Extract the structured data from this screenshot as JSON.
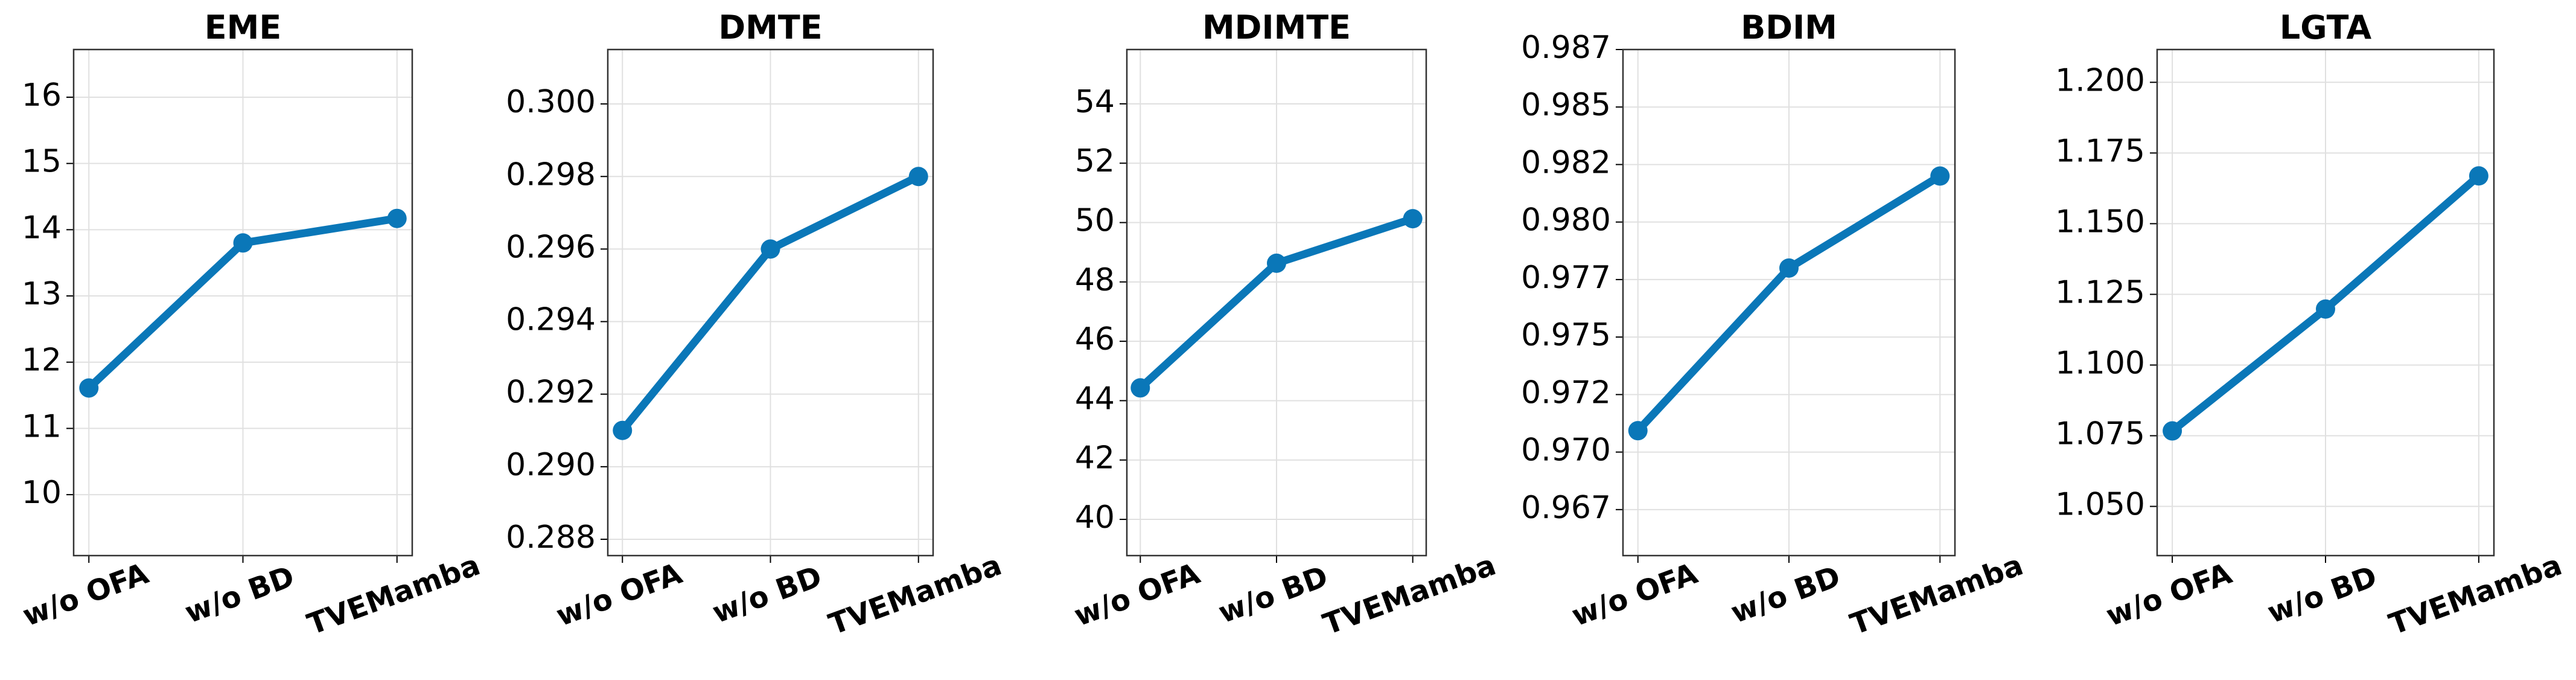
{
  "chart_data": [
    {
      "type": "line",
      "title": "EME",
      "categories": [
        "w/o OFA",
        "w/o BD",
        "TVEMamba"
      ],
      "values": [
        11.61,
        13.8,
        14.17
      ],
      "color": "#0a77b8",
      "ylim": [
        9.08,
        16.72
      ],
      "yticks": [
        10,
        11,
        12,
        13,
        14,
        15,
        16
      ],
      "grid": true
    },
    {
      "type": "line",
      "title": "DMTE",
      "categories": [
        "w/o OFA",
        "w/o BD",
        "TVEMamba"
      ],
      "values": [
        0.291,
        0.296,
        0.298
      ],
      "color": "#0a77b8",
      "ylim": [
        0.28755,
        0.3015
      ],
      "yticks": [
        0.288,
        {
          "value": 0.29,
          "label": "0.290"
        },
        0.292,
        0.294,
        0.296,
        0.298,
        {
          "value": 0.3,
          "label": "0.300"
        }
      ],
      "grid": true
    },
    {
      "type": "line",
      "title": "MDIMTE",
      "categories": [
        "w/o OFA",
        "w/o BD",
        "TVEMamba"
      ],
      "values": [
        44.43,
        48.63,
        50.13
      ],
      "color": "#0a77b8",
      "ylim": [
        38.78,
        55.83
      ],
      "yticks": [
        40,
        42,
        44,
        46,
        48,
        50,
        52,
        54
      ],
      "grid": true
    },
    {
      "type": "line",
      "title": "BDIM",
      "categories": [
        "w/o OFA",
        "w/o BD",
        "TVEMamba"
      ],
      "values": [
        0.97093,
        0.978,
        0.982
      ],
      "color": "#0a77b8",
      "ylim": [
        0.9655,
        0.9875
      ],
      "yticks": [
        {
          "value": 0.9675,
          "label": "0.967"
        },
        {
          "value": 0.97,
          "label": "0.970"
        },
        {
          "value": 0.9725,
          "label": "0.972"
        },
        0.975,
        {
          "value": 0.9775,
          "label": "0.977"
        },
        {
          "value": 0.98,
          "label": "0.980"
        },
        {
          "value": 0.9825,
          "label": "0.982"
        },
        0.985,
        {
          "value": 0.9875,
          "label": "0.987"
        }
      ],
      "grid": true
    },
    {
      "type": "line",
      "title": "LGTA",
      "categories": [
        "w/o OFA",
        "w/o BD",
        "TVEMamba"
      ],
      "values": [
        1.0767,
        1.1198,
        1.1669
      ],
      "color": "#0a77b8",
      "ylim": [
        1.0326,
        1.2116
      ],
      "yticks": [
        {
          "value": 1.05,
          "label": "1.050"
        },
        1.075,
        {
          "value": 1.1,
          "label": "1.100"
        },
        1.125,
        {
          "value": 1.15,
          "label": "1.150"
        },
        1.175,
        {
          "value": 1.2,
          "label": "1.200"
        }
      ],
      "grid": true
    }
  ]
}
